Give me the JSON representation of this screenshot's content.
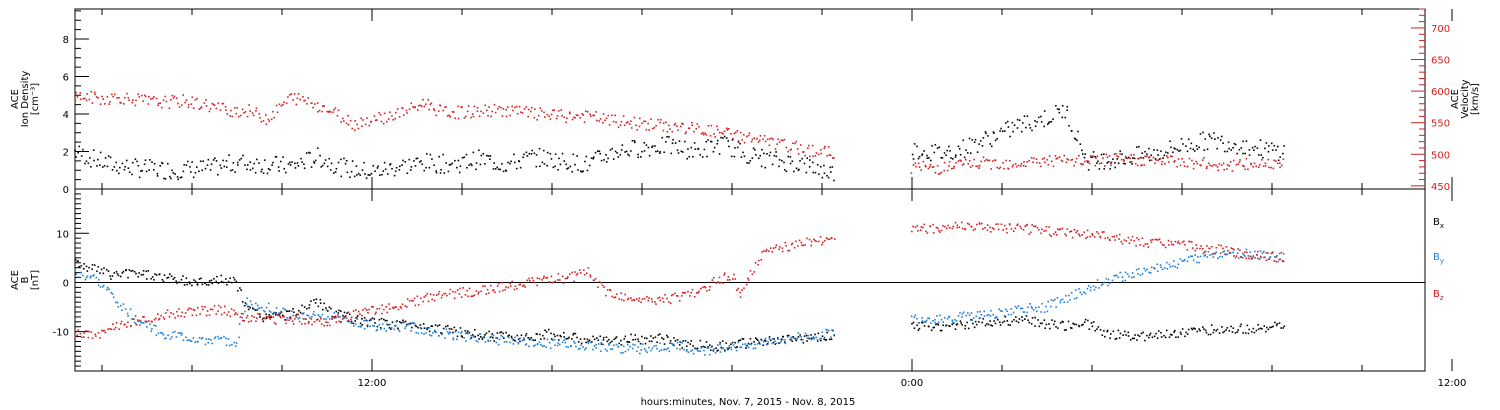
{
  "chart_data": [
    {
      "type": "scatter",
      "panel": "top",
      "xlabel": "hours:minutes, Nov.  7, 2015 - Nov.  8, 2015",
      "x_unit": "hours since 2015-11-07 00:00",
      "xlim": [
        5.4,
        35.4
      ],
      "x_ticks": [
        {
          "x": 12,
          "label": "12:00"
        },
        {
          "x": 24,
          "label": "0:00"
        },
        {
          "x": 36,
          "label": "12:00"
        }
      ],
      "left_axis": {
        "label_lines": [
          "ACE",
          "Ion Density",
          "[cm⁻³]"
        ],
        "ylim": [
          0,
          9.6
        ],
        "ticks": [
          0,
          2,
          4,
          6,
          8
        ]
      },
      "right_axis": {
        "label_lines": [
          "ACE",
          "Velocity",
          "[km/s]"
        ],
        "color": "#d42020",
        "ylim": [
          445,
          730
        ],
        "ticks": [
          450,
          500,
          550,
          600,
          650,
          700
        ]
      },
      "series": [
        {
          "axis": "left",
          "color": "#000000",
          "points": [
            [
              5.4,
              2.0
            ],
            [
              5.8,
              1.6
            ],
            [
              6.2,
              1.3
            ],
            [
              6.8,
              1.1
            ],
            [
              7.6,
              1.0
            ],
            [
              8.4,
              1.1
            ],
            [
              9.0,
              1.4
            ],
            [
              9.7,
              1.3
            ],
            [
              10.2,
              1.2
            ],
            [
              10.8,
              1.7
            ],
            [
              11.4,
              1.1
            ],
            [
              12.0,
              0.9
            ],
            [
              12.6,
              1.2
            ],
            [
              13.2,
              1.4
            ],
            [
              13.8,
              1.3
            ],
            [
              14.4,
              1.6
            ],
            [
              15.0,
              1.3
            ],
            [
              15.6,
              1.7
            ],
            [
              16.2,
              1.5
            ],
            [
              16.8,
              1.3
            ],
            [
              17.4,
              2.0
            ],
            [
              18.0,
              2.2
            ],
            [
              18.6,
              2.3
            ],
            [
              19.2,
              2.0
            ],
            [
              19.8,
              2.4
            ],
            [
              20.4,
              1.8
            ],
            [
              21.0,
              1.5
            ],
            [
              21.6,
              1.3
            ],
            [
              22.0,
              1.0
            ],
            [
              22.3,
              0.8
            ]
          ],
          "gap_after_x": 22.3,
          "points_after_gap": [
            [
              24.0,
              2.1
            ],
            [
              24.6,
              1.9
            ],
            [
              25.2,
              2.2
            ],
            [
              25.8,
              2.8
            ],
            [
              26.4,
              3.4
            ],
            [
              27.0,
              3.8
            ],
            [
              27.4,
              4.2
            ],
            [
              27.6,
              3.2
            ],
            [
              27.9,
              1.5
            ],
            [
              28.6,
              1.6
            ],
            [
              29.4,
              1.9
            ],
            [
              30.0,
              2.3
            ],
            [
              30.6,
              2.6
            ],
            [
              31.2,
              2.4
            ],
            [
              31.8,
              2.1
            ],
            [
              32.3,
              2.0
            ]
          ]
        },
        {
          "axis": "right",
          "color": "#d42020",
          "points": [
            [
              5.4,
              592
            ],
            [
              6.0,
              588
            ],
            [
              6.4,
              590
            ],
            [
              6.8,
              586
            ],
            [
              7.2,
              582
            ],
            [
              7.8,
              584
            ],
            [
              8.3,
              578
            ],
            [
              8.8,
              570
            ],
            [
              9.3,
              568
            ],
            [
              9.7,
              556
            ],
            [
              10.2,
              590
            ],
            [
              10.6,
              584
            ],
            [
              11.2,
              565
            ],
            [
              11.6,
              548
            ],
            [
              12.0,
              556
            ],
            [
              12.4,
              560
            ],
            [
              12.9,
              572
            ],
            [
              13.2,
              582
            ],
            [
              13.5,
              568
            ],
            [
              13.9,
              566
            ],
            [
              14.4,
              568
            ],
            [
              15.0,
              570
            ],
            [
              15.6,
              564
            ],
            [
              16.2,
              560
            ],
            [
              16.8,
              560
            ],
            [
              17.4,
              552
            ],
            [
              18.0,
              548
            ],
            [
              18.6,
              544
            ],
            [
              19.2,
              540
            ],
            [
              19.8,
              534
            ],
            [
              20.4,
              526
            ],
            [
              21.0,
              516
            ],
            [
              21.6,
              508
            ],
            [
              22.0,
              504
            ],
            [
              22.3,
              500
            ]
          ],
          "gap_after_x": 22.3,
          "points_after_gap": [
            [
              24.0,
              480
            ],
            [
              24.6,
              478
            ],
            [
              25.2,
              484
            ],
            [
              25.8,
              486
            ],
            [
              26.4,
              486
            ],
            [
              27.0,
              490
            ],
            [
              27.6,
              488
            ],
            [
              28.2,
              490
            ],
            [
              28.8,
              492
            ],
            [
              29.4,
              490
            ],
            [
              30.0,
              488
            ],
            [
              30.6,
              484
            ],
            [
              31.2,
              482
            ],
            [
              31.8,
              485
            ],
            [
              32.3,
              490
            ]
          ]
        }
      ]
    },
    {
      "type": "scatter",
      "panel": "bottom",
      "xlabel": "hours:minutes, Nov.  7, 2015 - Nov.  8, 2015",
      "x_unit": "hours since 2015-11-07 00:00",
      "xlim": [
        5.4,
        35.4
      ],
      "left_axis": {
        "label_lines": [
          "ACE",
          "B",
          "[nT]"
        ],
        "ylim": [
          -18,
          19
        ],
        "ticks": [
          -10,
          0,
          10
        ]
      },
      "zero_line": true,
      "legend": [
        {
          "label": "B",
          "sub": "x",
          "color": "#000000"
        },
        {
          "label": "B",
          "sub": "y",
          "color": "#1f7fd6"
        },
        {
          "label": "B",
          "sub": "z",
          "color": "#d42020"
        }
      ],
      "series": [
        {
          "name": "Bx",
          "color": "#000000",
          "points": [
            [
              5.4,
              4.0
            ],
            [
              5.8,
              3.0
            ],
            [
              6.2,
              1.5
            ],
            [
              6.8,
              2.0
            ],
            [
              7.4,
              1.0
            ],
            [
              8.0,
              0.0
            ],
            [
              8.6,
              0.5
            ],
            [
              9.0,
              0.0
            ],
            [
              9.2,
              -5.0
            ],
            [
              9.6,
              -7.0
            ],
            [
              10.2,
              -6.5
            ],
            [
              10.8,
              -4.0
            ],
            [
              11.2,
              -6.5
            ],
            [
              11.8,
              -8.0
            ],
            [
              12.4,
              -8.5
            ],
            [
              13.0,
              -8.5
            ],
            [
              13.6,
              -9.5
            ],
            [
              14.2,
              -10.5
            ],
            [
              14.8,
              -11.0
            ],
            [
              15.4,
              -11.0
            ],
            [
              16.0,
              -10.5
            ],
            [
              16.6,
              -11.5
            ],
            [
              17.2,
              -12.0
            ],
            [
              17.8,
              -11.5
            ],
            [
              18.4,
              -11.5
            ],
            [
              19.0,
              -12.5
            ],
            [
              19.6,
              -13.0
            ],
            [
              20.2,
              -12.5
            ],
            [
              20.8,
              -12.0
            ],
            [
              21.4,
              -11.5
            ],
            [
              22.0,
              -11.0
            ],
            [
              22.3,
              -10.5
            ]
          ],
          "gap_after_x": 22.3,
          "points_after_gap": [
            [
              24.0,
              -9.0
            ],
            [
              24.6,
              -9.0
            ],
            [
              25.2,
              -8.5
            ],
            [
              25.8,
              -8.0
            ],
            [
              26.4,
              -7.5
            ],
            [
              27.0,
              -8.5
            ],
            [
              27.4,
              -9.0
            ],
            [
              27.8,
              -8.0
            ],
            [
              28.4,
              -10.5
            ],
            [
              29.0,
              -11.0
            ],
            [
              29.6,
              -10.5
            ],
            [
              30.2,
              -10.0
            ],
            [
              30.8,
              -9.5
            ],
            [
              31.4,
              -9.5
            ],
            [
              32.0,
              -9.0
            ],
            [
              32.3,
              -9.0
            ]
          ]
        },
        {
          "name": "By",
          "color": "#1f7fd6",
          "points": [
            [
              5.4,
              1.5
            ],
            [
              5.8,
              1.0
            ],
            [
              6.2,
              -2.5
            ],
            [
              6.8,
              -8.0
            ],
            [
              7.4,
              -10.5
            ],
            [
              8.0,
              -11.5
            ],
            [
              8.6,
              -12.0
            ],
            [
              9.0,
              -12.0
            ],
            [
              9.2,
              -4.0
            ],
            [
              9.8,
              -5.5
            ],
            [
              10.4,
              -7.0
            ],
            [
              11.0,
              -6.5
            ],
            [
              11.6,
              -8.0
            ],
            [
              12.2,
              -9.0
            ],
            [
              12.8,
              -9.0
            ],
            [
              13.4,
              -10.0
            ],
            [
              14.0,
              -11.0
            ],
            [
              14.6,
              -11.5
            ],
            [
              15.2,
              -12.0
            ],
            [
              15.8,
              -12.5
            ],
            [
              16.4,
              -12.5
            ],
            [
              17.0,
              -13.0
            ],
            [
              17.6,
              -13.5
            ],
            [
              18.2,
              -13.5
            ],
            [
              18.8,
              -13.0
            ],
            [
              19.4,
              -14.0
            ],
            [
              20.0,
              -13.0
            ],
            [
              20.6,
              -12.5
            ],
            [
              21.2,
              -11.5
            ],
            [
              21.8,
              -11.0
            ],
            [
              22.3,
              -10.0
            ]
          ],
          "gap_after_x": 22.3,
          "points_after_gap": [
            [
              24.0,
              -7.5
            ],
            [
              24.6,
              -7.5
            ],
            [
              25.2,
              -7.0
            ],
            [
              25.8,
              -6.5
            ],
            [
              26.4,
              -5.5
            ],
            [
              27.0,
              -5.0
            ],
            [
              27.6,
              -2.5
            ],
            [
              28.2,
              0.0
            ],
            [
              28.8,
              1.5
            ],
            [
              29.4,
              3.0
            ],
            [
              30.0,
              4.0
            ],
            [
              30.6,
              5.5
            ],
            [
              31.2,
              6.0
            ],
            [
              31.8,
              5.5
            ],
            [
              32.3,
              5.0
            ]
          ]
        },
        {
          "name": "Bz",
          "color": "#d42020",
          "points": [
            [
              5.4,
              -10.5
            ],
            [
              5.8,
              -11.0
            ],
            [
              6.2,
              -9.5
            ],
            [
              6.8,
              -7.5
            ],
            [
              7.4,
              -6.5
            ],
            [
              8.0,
              -6.0
            ],
            [
              8.6,
              -5.5
            ],
            [
              9.2,
              -7.0
            ],
            [
              9.8,
              -7.5
            ],
            [
              10.4,
              -7.5
            ],
            [
              11.0,
              -8.0
            ],
            [
              11.6,
              -6.5
            ],
            [
              12.2,
              -5.5
            ],
            [
              12.8,
              -4.0
            ],
            [
              13.4,
              -3.0
            ],
            [
              14.0,
              -2.0
            ],
            [
              14.6,
              -1.5
            ],
            [
              15.2,
              -0.5
            ],
            [
              15.8,
              0.5
            ],
            [
              16.4,
              1.0
            ],
            [
              16.8,
              2.0
            ],
            [
              17.2,
              -2.0
            ],
            [
              17.6,
              -3.0
            ],
            [
              18.2,
              -4.0
            ],
            [
              18.8,
              -3.0
            ],
            [
              19.2,
              -2.0
            ],
            [
              19.6,
              0.0
            ],
            [
              20.0,
              1.5
            ],
            [
              20.2,
              -3.0
            ],
            [
              20.6,
              5.0
            ],
            [
              21.0,
              7.0
            ],
            [
              21.6,
              8.0
            ],
            [
              22.0,
              8.5
            ],
            [
              22.3,
              9.0
            ]
          ],
          "gap_after_x": 22.3,
          "points_after_gap": [
            [
              24.0,
              11.0
            ],
            [
              24.6,
              11.0
            ],
            [
              25.2,
              11.5
            ],
            [
              25.8,
              11.0
            ],
            [
              26.4,
              11.0
            ],
            [
              27.0,
              10.5
            ],
            [
              27.6,
              10.0
            ],
            [
              28.2,
              9.5
            ],
            [
              28.8,
              8.5
            ],
            [
              29.4,
              8.0
            ],
            [
              30.0,
              7.5
            ],
            [
              30.6,
              7.0
            ],
            [
              31.2,
              6.0
            ],
            [
              31.8,
              5.5
            ],
            [
              32.3,
              5.0
            ]
          ]
        }
      ]
    }
  ]
}
